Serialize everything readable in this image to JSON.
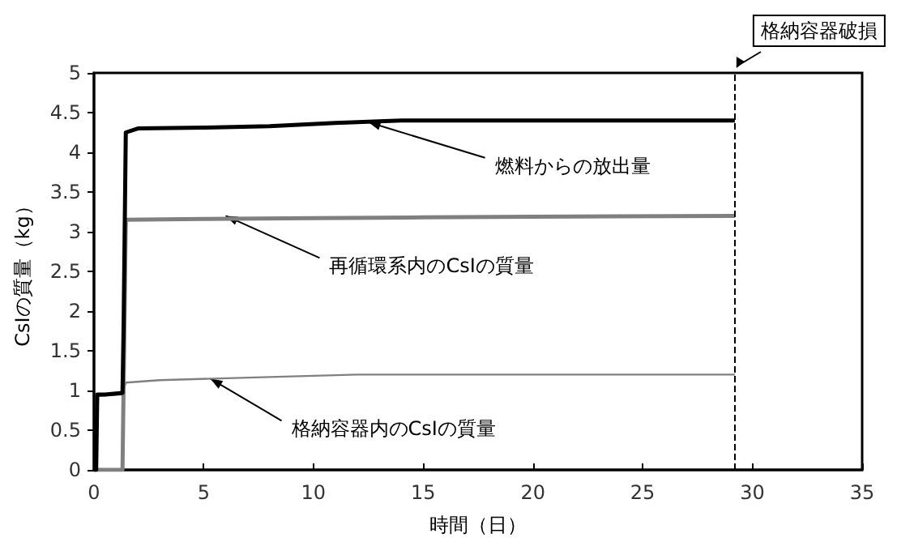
{
  "chart_data": {
    "type": "line",
    "xlabel": "時間（日）",
    "ylabel": "CsIの質量（kg）",
    "xlim": [
      0,
      35
    ],
    "xticks": [
      0,
      5,
      10,
      15,
      20,
      25,
      30,
      35
    ],
    "ylim": [
      0,
      5
    ],
    "yticks": [
      0,
      0.5,
      1,
      1.5,
      2,
      2.5,
      3,
      3.5,
      4,
      4.5,
      5
    ],
    "grid": false,
    "line_style": "solid",
    "series": [
      {
        "color": "#000000",
        "x": [
          0,
          0.1,
          0.15,
          0.5,
          1.3,
          1.35,
          1.45,
          2,
          5,
          8,
          11,
          14,
          20,
          29.2
        ],
        "values": [
          0,
          0,
          0.95,
          0.95,
          0.97,
          1.8,
          4.25,
          4.3,
          4.31,
          4.33,
          4.37,
          4.4,
          4.4,
          4.4
        ]
      },
      {
        "color": "#808080",
        "x": [
          0,
          1.3,
          1.45,
          5,
          10,
          15,
          20,
          29.2
        ],
        "values": [
          0,
          0,
          3.15,
          3.16,
          3.17,
          3.18,
          3.19,
          3.2
        ]
      },
      {
        "color": "#808080",
        "x": [
          0,
          0.1,
          0.15,
          1.3,
          1.45,
          3,
          8,
          12,
          20,
          29.2
        ],
        "values": [
          0,
          0,
          0.93,
          0.95,
          1.1,
          1.13,
          1.17,
          1.2,
          1.2,
          1.2
        ]
      }
    ],
    "annotations": [
      {
        "text": "燃料からの放出量",
        "x": 12.5,
        "y": 4.38
      },
      {
        "text": "再循環系内のCsIの質量",
        "x": 6,
        "y": 3.2
      },
      {
        "text": "格納容器内のCsIの質量",
        "x": 5.3,
        "y": 1.15
      }
    ],
    "ref_lines": [
      {
        "axis": "x",
        "value": 29.2,
        "label": "格納容器破損",
        "line_style": "dashed",
        "color": "#000000"
      }
    ]
  }
}
